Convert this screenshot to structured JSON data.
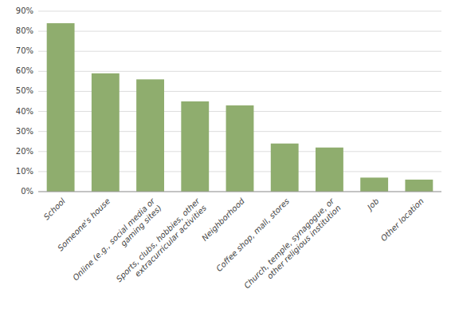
{
  "chart_data": {
    "type": "bar",
    "categories": [
      "School",
      "Someone's house",
      "Online (e.g., social media or\ngaming sites)",
      "Sports, clubs, hobbies, other\nextracurricular activities",
      "Neighborhood",
      "Coffee shop, mall, stores",
      "Church, temple, synagogue, or\nother religious institution",
      "Job",
      "Other location"
    ],
    "values": [
      84,
      59,
      56,
      45,
      43,
      24,
      22,
      7,
      6
    ],
    "color": "#8fad6e",
    "ylim": [
      0,
      90
    ],
    "yticks": [
      {
        "value": 0,
        "label": "0%"
      },
      {
        "value": 10,
        "label": "10%"
      },
      {
        "value": 20,
        "label": "20%"
      },
      {
        "value": 30,
        "label": "30%"
      },
      {
        "value": 40,
        "label": "40%"
      },
      {
        "value": 50,
        "label": "50%"
      },
      {
        "value": 60,
        "label": "60%"
      },
      {
        "value": 70,
        "label": "70%"
      },
      {
        "value": 80,
        "label": "80%"
      },
      {
        "value": 90,
        "label": "90%"
      }
    ],
    "grid": true
  }
}
